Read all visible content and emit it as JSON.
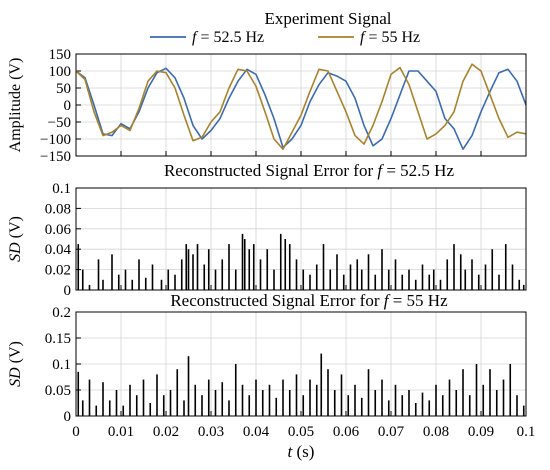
{
  "chart_data": [
    {
      "type": "line",
      "title": "Experiment Signal",
      "xlabel": "",
      "ylabel": "Amplitude (V)",
      "xlim": [
        0,
        0.1
      ],
      "ylim": [
        -150,
        150
      ],
      "yticks": [
        "150",
        "100",
        "50",
        "0",
        "−50",
        "−100",
        "−150"
      ],
      "legend": {
        "placement": "top-center",
        "items": [
          {
            "prefix": "f",
            "text": " = 52.5 Hz",
            "color": "#3b6bb0"
          },
          {
            "prefix": "f",
            "text": " = 55 Hz",
            "color": "#a8832c"
          }
        ]
      },
      "grid": true,
      "series": [
        {
          "name": "f = 52.5 Hz",
          "color": "#3b6bb0",
          "x": [
            0,
            0.002,
            0.004,
            0.006,
            0.008,
            0.01,
            0.012,
            0.014,
            0.016,
            0.018,
            0.02,
            0.022,
            0.024,
            0.026,
            0.028,
            0.03,
            0.032,
            0.034,
            0.036,
            0.038,
            0.04,
            0.042,
            0.044,
            0.046,
            0.048,
            0.05,
            0.052,
            0.054,
            0.056,
            0.058,
            0.06,
            0.062,
            0.064,
            0.066,
            0.068,
            0.07,
            0.072,
            0.074,
            0.076,
            0.078,
            0.08,
            0.082,
            0.084,
            0.086,
            0.088,
            0.09,
            0.092,
            0.094,
            0.096,
            0.098,
            0.1
          ],
          "values": [
            100,
            80,
            0,
            -85,
            -90,
            -55,
            -70,
            -20,
            50,
            95,
            108,
            80,
            20,
            -60,
            -100,
            -75,
            -40,
            20,
            70,
            105,
            90,
            30,
            -40,
            -125,
            -100,
            -60,
            10,
            60,
            95,
            85,
            70,
            20,
            -60,
            -120,
            -100,
            -40,
            30,
            100,
            100,
            70,
            40,
            -40,
            -70,
            -130,
            -90,
            -20,
            40,
            95,
            105,
            70,
            0
          ]
        },
        {
          "name": "f = 55 Hz",
          "color": "#a8832c",
          "x": [
            0,
            0.002,
            0.004,
            0.006,
            0.008,
            0.01,
            0.012,
            0.014,
            0.016,
            0.018,
            0.02,
            0.022,
            0.024,
            0.026,
            0.028,
            0.03,
            0.032,
            0.034,
            0.036,
            0.038,
            0.04,
            0.042,
            0.044,
            0.046,
            0.048,
            0.05,
            0.052,
            0.054,
            0.056,
            0.058,
            0.06,
            0.062,
            0.064,
            0.066,
            0.068,
            0.07,
            0.072,
            0.074,
            0.076,
            0.078,
            0.08,
            0.082,
            0.084,
            0.086,
            0.088,
            0.09,
            0.092,
            0.094,
            0.096,
            0.098,
            0.1
          ],
          "values": [
            100,
            75,
            -20,
            -90,
            -80,
            -60,
            -75,
            -10,
            70,
            100,
            95,
            50,
            -30,
            -105,
            -95,
            -50,
            -20,
            50,
            105,
            100,
            55,
            -20,
            -100,
            -130,
            -80,
            -30,
            40,
            105,
            100,
            40,
            -20,
            -90,
            -115,
            -60,
            10,
            90,
            110,
            60,
            -20,
            -100,
            -85,
            -60,
            -20,
            70,
            120,
            100,
            30,
            -40,
            -95,
            -80,
            -85
          ]
        }
      ]
    },
    {
      "type": "bar",
      "title_prefix": "Reconstructed Signal Error for ",
      "title_var": "f",
      "title_suffix": " = 52.5 Hz",
      "ylabel_var": "SD",
      "ylabel_unit": " (V)",
      "xlim": [
        0,
        0.1
      ],
      "ylim": [
        0,
        0.1
      ],
      "yticks": [
        "0.1",
        "0.08",
        "0.06",
        "0.04",
        "0.02",
        "0"
      ],
      "grid": true,
      "series": [
        {
          "name": "SD",
          "color": "#000000",
          "x": [
            0.0005,
            0.0015,
            0.003,
            0.005,
            0.006,
            0.008,
            0.0095,
            0.011,
            0.0125,
            0.014,
            0.0155,
            0.017,
            0.019,
            0.0205,
            0.022,
            0.0235,
            0.0245,
            0.025,
            0.026,
            0.027,
            0.0285,
            0.0295,
            0.031,
            0.0325,
            0.034,
            0.0355,
            0.037,
            0.0375,
            0.0385,
            0.0395,
            0.041,
            0.0425,
            0.044,
            0.0455,
            0.0465,
            0.0475,
            0.049,
            0.0505,
            0.052,
            0.0535,
            0.055,
            0.0565,
            0.058,
            0.0595,
            0.061,
            0.0625,
            0.0635,
            0.065,
            0.0665,
            0.068,
            0.0695,
            0.071,
            0.0725,
            0.074,
            0.0755,
            0.077,
            0.0785,
            0.0795,
            0.081,
            0.0825,
            0.084,
            0.0855,
            0.0865,
            0.088,
            0.0895,
            0.091,
            0.0925,
            0.094,
            0.0955,
            0.097,
            0.0985,
            0.0995
          ],
          "values": [
            0.045,
            0.02,
            0.005,
            0.03,
            0.01,
            0.035,
            0.015,
            0.02,
            0.01,
            0.03,
            0.012,
            0.025,
            0.01,
            0.02,
            0.015,
            0.03,
            0.045,
            0.04,
            0.035,
            0.045,
            0.025,
            0.04,
            0.02,
            0.03,
            0.045,
            0.02,
            0.055,
            0.05,
            0.04,
            0.045,
            0.03,
            0.04,
            0.02,
            0.055,
            0.05,
            0.045,
            0.03,
            0.02,
            0.015,
            0.025,
            0.045,
            0.02,
            0.035,
            0.015,
            0.025,
            0.03,
            0.02,
            0.035,
            0.015,
            0.04,
            0.02,
            0.03,
            0.015,
            0.02,
            0.01,
            0.025,
            0.015,
            0.02,
            0.01,
            0.03,
            0.045,
            0.035,
            0.02,
            0.03,
            0.015,
            0.025,
            0.04,
            0.015,
            0.045,
            0.025,
            0.01,
            0.005
          ]
        }
      ]
    },
    {
      "type": "bar",
      "title_prefix": "Reconstructed Signal Error for ",
      "title_var": "f",
      "title_suffix": " = 55 Hz",
      "ylabel_var": "SD",
      "ylabel_unit": " (V)",
      "xlabel_var": "t",
      "xlabel_unit": " (s)",
      "xlim": [
        0,
        0.1
      ],
      "ylim": [
        0,
        0.2
      ],
      "yticks": [
        "0.2",
        "0.15",
        "0.1",
        "0.05",
        "0"
      ],
      "xticks": [
        "0",
        "0.01",
        "0.02",
        "0.03",
        "0.04",
        "0.05",
        "0.06",
        "0.07",
        "0.08",
        "0.09",
        "0.1"
      ],
      "grid": true,
      "series": [
        {
          "name": "SD",
          "color": "#000000",
          "x": [
            0.0005,
            0.0015,
            0.003,
            0.0045,
            0.006,
            0.0075,
            0.009,
            0.0105,
            0.012,
            0.0135,
            0.015,
            0.0165,
            0.018,
            0.0195,
            0.021,
            0.0225,
            0.024,
            0.025,
            0.0265,
            0.028,
            0.0295,
            0.031,
            0.0325,
            0.034,
            0.0355,
            0.037,
            0.0385,
            0.04,
            0.0415,
            0.043,
            0.0445,
            0.046,
            0.0475,
            0.049,
            0.0505,
            0.052,
            0.0535,
            0.0545,
            0.056,
            0.0575,
            0.059,
            0.0605,
            0.062,
            0.0635,
            0.065,
            0.0665,
            0.068,
            0.0695,
            0.071,
            0.0725,
            0.074,
            0.0755,
            0.077,
            0.0785,
            0.08,
            0.0815,
            0.083,
            0.0845,
            0.086,
            0.0875,
            0.089,
            0.0905,
            0.092,
            0.0935,
            0.095,
            0.0965,
            0.098,
            0.0995
          ],
          "values": [
            0.085,
            0.03,
            0.07,
            0.02,
            0.065,
            0.03,
            0.05,
            0.02,
            0.06,
            0.04,
            0.07,
            0.025,
            0.08,
            0.04,
            0.05,
            0.09,
            0.03,
            0.115,
            0.06,
            0.04,
            0.07,
            0.05,
            0.065,
            0.03,
            0.1,
            0.06,
            0.04,
            0.07,
            0.05,
            0.06,
            0.035,
            0.07,
            0.05,
            0.08,
            0.04,
            0.07,
            0.06,
            0.12,
            0.09,
            0.05,
            0.08,
            0.04,
            0.06,
            0.035,
            0.09,
            0.05,
            0.07,
            0.03,
            0.06,
            0.04,
            0.05,
            0.025,
            0.045,
            0.03,
            0.06,
            0.04,
            0.07,
            0.05,
            0.09,
            0.04,
            0.1,
            0.06,
            0.09,
            0.05,
            0.07,
            0.1,
            0.04,
            0.02
          ]
        }
      ]
    }
  ]
}
